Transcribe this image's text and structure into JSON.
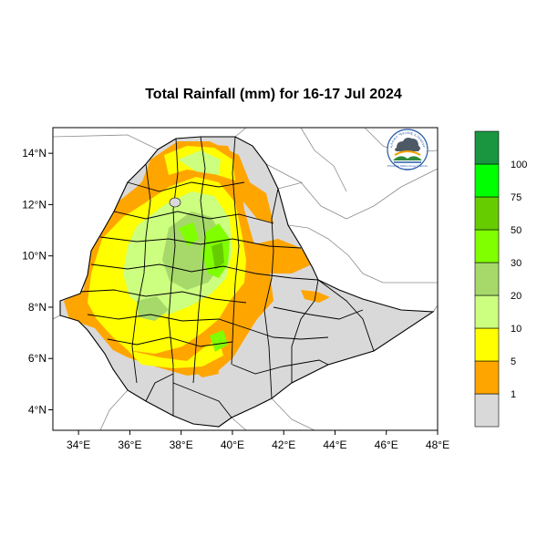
{
  "title": "Total Rainfall (mm) for 16-17 Jul 2024",
  "map": {
    "lon_range": [
      33,
      48
    ],
    "lat_range": [
      3.2,
      15
    ],
    "x_ticks": [
      {
        "value": 34,
        "label": "34°E"
      },
      {
        "value": 36,
        "label": "36°E"
      },
      {
        "value": 38,
        "label": "38°E"
      },
      {
        "value": 40,
        "label": "40°E"
      },
      {
        "value": 42,
        "label": "42°E"
      },
      {
        "value": 44,
        "label": "44°E"
      },
      {
        "value": 46,
        "label": "46°E"
      },
      {
        "value": 48,
        "label": "48°E"
      }
    ],
    "y_ticks": [
      {
        "value": 4,
        "label": "4°N"
      },
      {
        "value": 6,
        "label": "6°N"
      },
      {
        "value": 8,
        "label": "8°N"
      },
      {
        "value": 10,
        "label": "10°N"
      },
      {
        "value": 12,
        "label": "12°N"
      },
      {
        "value": 14,
        "label": "14°N"
      }
    ]
  },
  "legend": {
    "bins": [
      {
        "color": "#d9d9d9"
      },
      {
        "color": "#ffa500"
      },
      {
        "color": "#ffff00"
      },
      {
        "color": "#ccff80"
      },
      {
        "color": "#a6d96a"
      },
      {
        "color": "#80ff00"
      },
      {
        "color": "#66cc00"
      },
      {
        "color": "#00ff00"
      },
      {
        "color": "#1a9641"
      }
    ],
    "labels": [
      "1",
      "5",
      "10",
      "20",
      "30",
      "50",
      "75",
      "100"
    ]
  },
  "colors": {
    "no_rain": "#d9d9d9",
    "rain_1_5": "#ffa500",
    "rain_5_10": "#ffff00",
    "rain_10_20": "#ccff80",
    "rain_20_30": "#a6d96a",
    "rain_30_50": "#80ff00",
    "rain_50_75": "#66cc00"
  },
  "logo": {
    "arc_text": "ኢትዮጵያ ሜትሮሎጂ ኢንስቲትዩት",
    "caption": "Ethiopian Meteorology Institute",
    "year": "EMI"
  }
}
